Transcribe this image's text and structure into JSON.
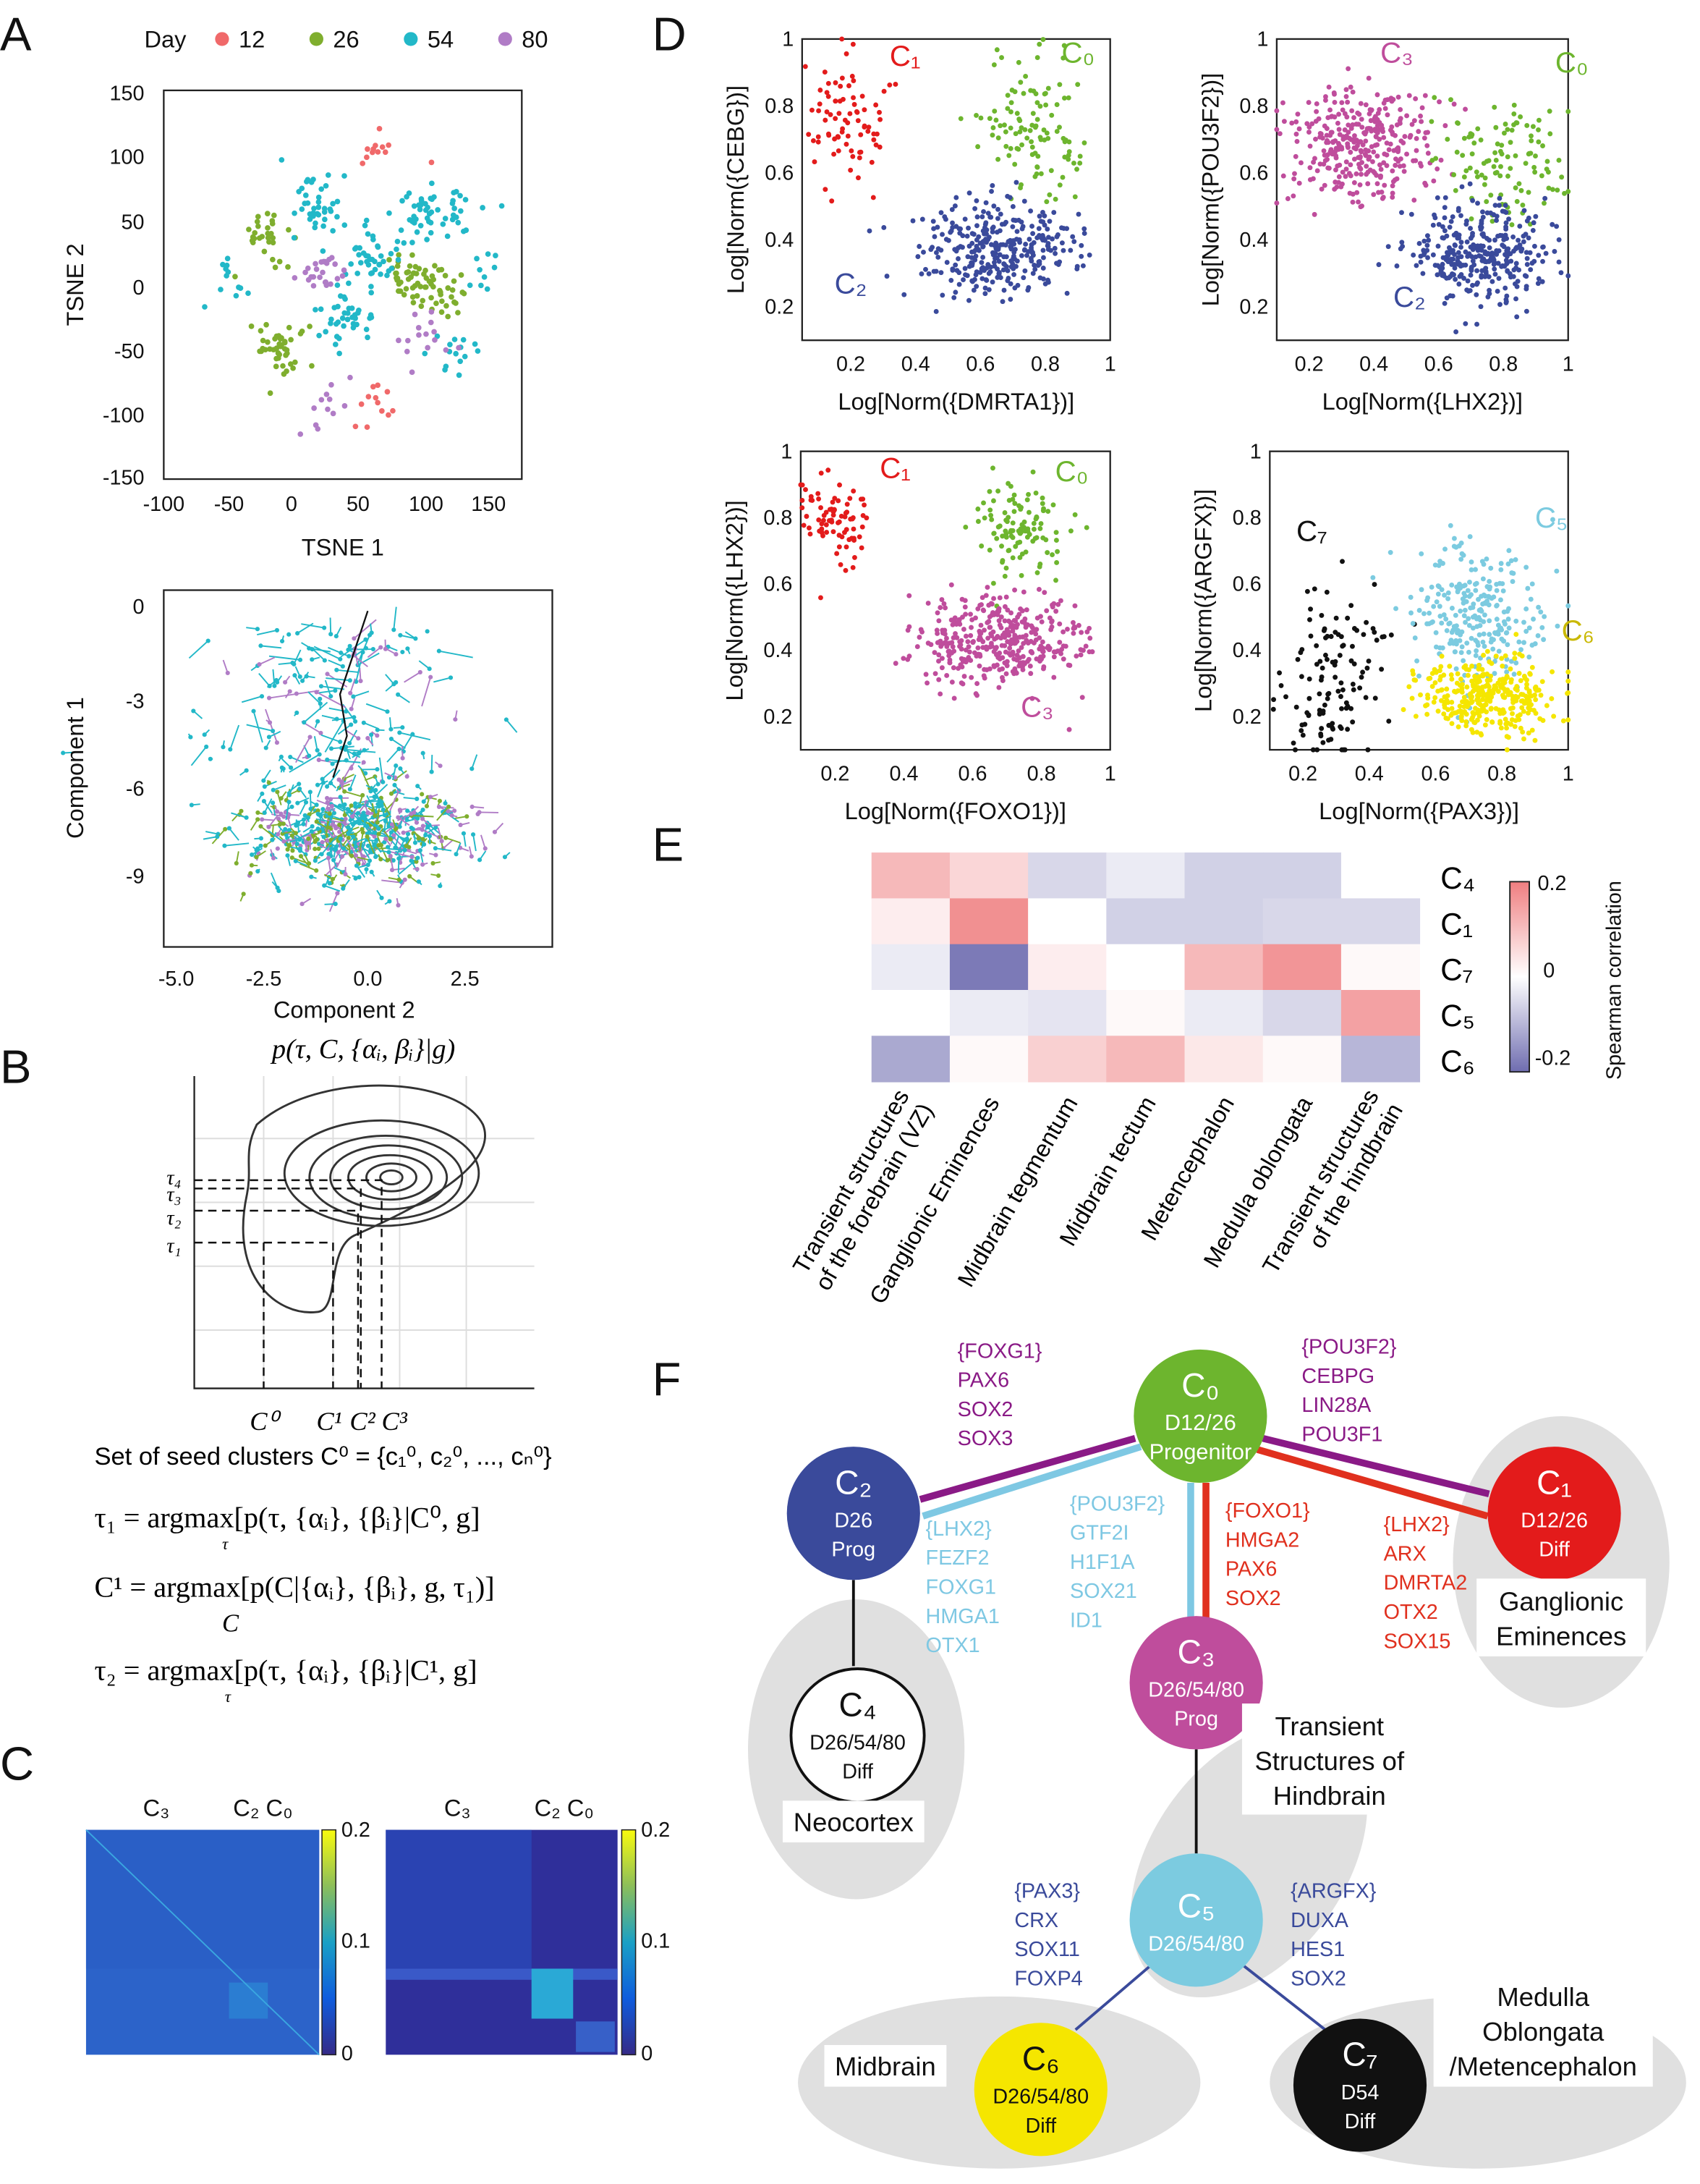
{
  "panel_labels": {
    "A": "A",
    "B": "B",
    "C": "C",
    "D": "D",
    "E": "E",
    "F": "F"
  },
  "colors": {
    "day12": "#f0696a",
    "day26": "#7fae2e",
    "day54": "#22b8c8",
    "day80": "#b07cc6",
    "c0": "#6db52e",
    "c1": "#e31b1b",
    "c2": "#3a4a9b",
    "c3": "#bf4d9c",
    "c4": "#ffffff",
    "c5": "#7ccbe0",
    "c6": "#f5e600",
    "c7": "#111111",
    "purple_edge": "#8a1a86",
    "lightblue_edge": "#7ec8e3",
    "red_edge": "#e0301e",
    "blue_edge": "#3a4a9b"
  },
  "panelA": {
    "legend": {
      "title": "Day",
      "items": [
        {
          "label": "12",
          "color": "#f0696a"
        },
        {
          "label": "26",
          "color": "#7fae2e"
        },
        {
          "label": "54",
          "color": "#22b8c8"
        },
        {
          "label": "80",
          "color": "#b07cc6"
        }
      ]
    },
    "tsne": {
      "xlabel": "TSNE 1",
      "ylabel": "TSNE 2",
      "xticks": [
        "-100",
        "-50",
        "0",
        "50",
        "100",
        "150"
      ],
      "yticks": [
        "150",
        "100",
        "50",
        "0",
        "-50",
        "-100",
        "-150"
      ]
    },
    "tree": {
      "xlabel": "Component 2",
      "ylabel": "Component 1",
      "xticks": [
        "-5.0",
        "-2.5",
        "0.0",
        "2.5"
      ],
      "yticks": [
        "0",
        "-3",
        "-6",
        "-9"
      ]
    }
  },
  "panelB": {
    "title": "p(τ, C, {αᵢ, βᵢ}|g)",
    "tau_labels": [
      "τ₄",
      "τ₃",
      "τ₂",
      "τ₁"
    ],
    "c_labels": [
      "C⁰",
      "C¹",
      "C²",
      "C³"
    ],
    "equations": [
      "Set of seed clusters  C⁰ = {c₁⁰, c₂⁰, ..., cₙ⁰}",
      "τ₁ = argmax[p(τ, {αᵢ}, {βᵢ}|C⁰, g]",
      "C¹ = argmax[p(C|{αᵢ}, {βᵢ}, g, τ₁)]",
      "τ₂ = argmax[p(τ, {αᵢ}, {βᵢ}|C¹, g]"
    ],
    "argmax_subs": [
      "τ",
      "C",
      "τ"
    ]
  },
  "panelC": {
    "left": {
      "labels": [
        "C₃",
        "C₂ C₀"
      ],
      "colorbar_ticks": [
        "0.2",
        "0.1",
        "0"
      ]
    },
    "right": {
      "labels": [
        "C₃",
        "C₂ C₀"
      ],
      "colorbar_ticks": [
        "0.2",
        "0.1",
        "0"
      ]
    }
  },
  "chart_data": [
    {
      "type": "scatter",
      "panel": "D-1",
      "xlabel": "Log[Norm({DMRTA1})]",
      "ylabel": "Log[Norm({CEBG})]",
      "xticks": [
        "0.2",
        "0.4",
        "0.6",
        "0.8",
        "1"
      ],
      "yticks": [
        "1",
        "0.8",
        "0.6",
        "0.4",
        "0.2"
      ],
      "xlim": [
        0.05,
        1
      ],
      "ylim": [
        0.1,
        1
      ],
      "clusters": [
        {
          "name": "C1",
          "color": "#e31b1b",
          "center": [
            0.2,
            0.76
          ],
          "spread": [
            0.06,
            0.1
          ],
          "n": 80
        },
        {
          "name": "C0",
          "color": "#6db52e",
          "center": [
            0.76,
            0.73
          ],
          "spread": [
            0.08,
            0.1
          ],
          "n": 110
        },
        {
          "name": "C2",
          "color": "#3a4a9b",
          "center": [
            0.64,
            0.37
          ],
          "spread": [
            0.12,
            0.07
          ],
          "n": 330
        }
      ],
      "labels": [
        {
          "text": "C₁",
          "color": "#e31b1b",
          "at": [
            0.32,
            0.92
          ]
        },
        {
          "text": "C₀",
          "color": "#6db52e",
          "at": [
            0.85,
            0.93
          ]
        },
        {
          "text": "C₂",
          "color": "#3a4a9b",
          "at": [
            0.15,
            0.24
          ]
        }
      ]
    },
    {
      "type": "scatter",
      "panel": "D-2",
      "xlabel": "Log[Norm({LHX2})]",
      "ylabel": "Log[Norm({POU3F2})]",
      "xticks": [
        "0.2",
        "0.4",
        "0.6",
        "0.8",
        "1"
      ],
      "yticks": [
        "1",
        "0.8",
        "0.6",
        "0.4",
        "0.2"
      ],
      "xlim": [
        0.1,
        1
      ],
      "ylim": [
        0.1,
        1
      ],
      "clusters": [
        {
          "name": "C3",
          "color": "#bf4d9c",
          "center": [
            0.35,
            0.68
          ],
          "spread": [
            0.11,
            0.09
          ],
          "n": 330
        },
        {
          "name": "C0",
          "color": "#6db52e",
          "center": [
            0.8,
            0.62
          ],
          "spread": [
            0.1,
            0.1
          ],
          "n": 110
        },
        {
          "name": "C2",
          "color": "#3a4a9b",
          "center": [
            0.73,
            0.36
          ],
          "spread": [
            0.1,
            0.07
          ],
          "n": 330
        }
      ],
      "labels": [
        {
          "text": "C₃",
          "color": "#bf4d9c",
          "at": [
            0.42,
            0.93
          ]
        },
        {
          "text": "C₀",
          "color": "#6db52e",
          "at": [
            0.96,
            0.9
          ]
        },
        {
          "text": "C₂",
          "color": "#3a4a9b",
          "at": [
            0.46,
            0.2
          ]
        }
      ]
    },
    {
      "type": "scatter",
      "panel": "D-3",
      "xlabel": "Log[Norm({FOXO1})]",
      "ylabel": "Log[Norm({LHX2})]",
      "xticks": [
        "0.2",
        "0.4",
        "0.6",
        "0.8",
        "1"
      ],
      "yticks": [
        "1",
        "0.8",
        "0.6",
        "0.4",
        "0.2"
      ],
      "xlim": [
        0.1,
        1
      ],
      "ylim": [
        0.1,
        1
      ],
      "clusters": [
        {
          "name": "C1",
          "color": "#e31b1b",
          "center": [
            0.2,
            0.79
          ],
          "spread": [
            0.05,
            0.07
          ],
          "n": 80
        },
        {
          "name": "C0",
          "color": "#6db52e",
          "center": [
            0.73,
            0.78
          ],
          "spread": [
            0.07,
            0.07
          ],
          "n": 110
        },
        {
          "name": "C3",
          "color": "#bf4d9c",
          "center": [
            0.67,
            0.43
          ],
          "spread": [
            0.12,
            0.07
          ],
          "n": 380
        }
      ],
      "labels": [
        {
          "text": "C₁",
          "color": "#e31b1b",
          "at": [
            0.33,
            0.92
          ]
        },
        {
          "text": "C₀",
          "color": "#6db52e",
          "at": [
            0.84,
            0.91
          ]
        },
        {
          "text": "C₃",
          "color": "#bf4d9c",
          "at": [
            0.74,
            0.2
          ]
        }
      ]
    },
    {
      "type": "scatter",
      "panel": "D-4",
      "xlabel": "Log[Norm({PAX3})]",
      "ylabel": "Log[Norm({ARGFX})]",
      "xticks": [
        "0.2",
        "0.4",
        "0.6",
        "0.8",
        "1"
      ],
      "yticks": [
        "1",
        "0.8",
        "0.6",
        "0.4",
        "0.2"
      ],
      "xlim": [
        0.1,
        1
      ],
      "ylim": [
        0.1,
        1
      ],
      "clusters": [
        {
          "name": "C7",
          "color": "#111111",
          "center": [
            0.3,
            0.33
          ],
          "spread": [
            0.08,
            0.13
          ],
          "n": 120
        },
        {
          "name": "C5",
          "color": "#7ccbe0",
          "center": [
            0.73,
            0.5
          ],
          "spread": [
            0.1,
            0.1
          ],
          "n": 260
        },
        {
          "name": "C6",
          "color": "#f5e600",
          "center": [
            0.76,
            0.26
          ],
          "spread": [
            0.1,
            0.06
          ],
          "n": 330
        }
      ],
      "labels": [
        {
          "text": "C₇",
          "color": "#111111",
          "at": [
            0.18,
            0.73
          ]
        },
        {
          "text": "C₅",
          "color": "#7ccbe0",
          "at": [
            0.9,
            0.77
          ]
        },
        {
          "text": "C₆",
          "color": "#c9b800",
          "at": [
            0.98,
            0.43
          ]
        }
      ]
    },
    {
      "type": "heatmap",
      "panel": "E",
      "rows": [
        "C₄",
        "C₁",
        "C₇",
        "C₅",
        "C₆"
      ],
      "columns": [
        "Transient structures of the forebrain (VZ)",
        "Ganglionic Eminences",
        "Midbrain tegmentum",
        "Midbrain tectum",
        "Metencephalon",
        "Medulla oblongata",
        "Transient structures of the hindbrain"
      ],
      "column_lines": [
        [
          "Transient structures",
          "of the forebrain (VZ)"
        ],
        [
          "Ganglionic Eminences"
        ],
        [
          "Midbrain tegmentum"
        ],
        [
          "Midbrain tectum"
        ],
        [
          "Metencephalon"
        ],
        [
          "Medulla oblongata"
        ],
        [
          "Transient structures",
          "of the hindbrain"
        ]
      ],
      "values": [
        [
          0.12,
          0.07,
          -0.06,
          -0.03,
          -0.07,
          -0.07,
          0.0
        ],
        [
          0.03,
          0.19,
          0.0,
          -0.07,
          -0.07,
          -0.06,
          -0.06
        ],
        [
          -0.03,
          -0.2,
          0.03,
          0.0,
          0.12,
          0.18,
          0.01
        ],
        [
          0.0,
          -0.03,
          -0.04,
          0.01,
          -0.03,
          -0.06,
          0.16
        ],
        [
          -0.13,
          0.01,
          0.08,
          0.12,
          0.04,
          0.01,
          -0.11
        ]
      ],
      "colorbar": {
        "label": "Spearman correlation",
        "ticks": [
          "0.2",
          "0",
          "-0.2"
        ],
        "range": [
          -0.22,
          0.22
        ]
      }
    }
  ],
  "panelF": {
    "nodes": [
      {
        "id": "C0",
        "label": "C₀",
        "lines": [
          "D12/26",
          "Progenitor"
        ]
      },
      {
        "id": "C1",
        "label": "C₁",
        "lines": [
          "D12/26",
          "Diff"
        ]
      },
      {
        "id": "C2",
        "label": "C₂",
        "lines": [
          "D26",
          "Prog"
        ]
      },
      {
        "id": "C3",
        "label": "C₃",
        "lines": [
          "D26/54/80",
          "Prog"
        ]
      },
      {
        "id": "C4",
        "label": "C₄",
        "lines": [
          "D26/54/80",
          "Diff"
        ]
      },
      {
        "id": "C5",
        "label": "C₅",
        "lines": [
          "D26/54/80"
        ]
      },
      {
        "id": "C6",
        "label": "C₆",
        "lines": [
          "D26/54/80",
          "Diff"
        ]
      },
      {
        "id": "C7",
        "label": "C₇",
        "lines": [
          "D54",
          "Diff"
        ]
      }
    ],
    "gene_lists": {
      "c0_c2_purple": [
        "{FOXG1}",
        "PAX6",
        "SOX2",
        "SOX3"
      ],
      "c0_c1_purple": [
        "{POU3F2}",
        "CEBPG",
        "LIN28A",
        "POU3F1"
      ],
      "c0_c2_blue": [
        "{LHX2}",
        "FEZF2",
        "FOXG1",
        "HMGA1",
        "OTX1"
      ],
      "c0_c3_blue": [
        "{POU3F2}",
        "GTF2I",
        "H1F1A",
        "SOX21",
        "ID1"
      ],
      "c0_c3_red": [
        "{FOXO1}",
        "HMGA2",
        "PAX6",
        "SOX2"
      ],
      "c0_c1_red": [
        "{LHX2}",
        "ARX",
        "DMRTA2",
        "OTX2",
        "SOX15"
      ],
      "c5_c6": [
        "{PAX3}",
        "CRX",
        "SOX11",
        "FOXP4"
      ],
      "c5_c7": [
        "{ARGFX}",
        "DUXA",
        "HES1",
        "SOX2"
      ]
    },
    "regions": {
      "ganglionic": [
        "Ganglionic",
        "Eminences"
      ],
      "neocortex": [
        "Neocortex"
      ],
      "hindbrain": [
        "Transient",
        "Structures of",
        "Hindbrain"
      ],
      "midbrain": [
        "Midbrain"
      ],
      "medulla": [
        "Medulla",
        "Oblongata",
        "/Metencephalon"
      ]
    }
  }
}
